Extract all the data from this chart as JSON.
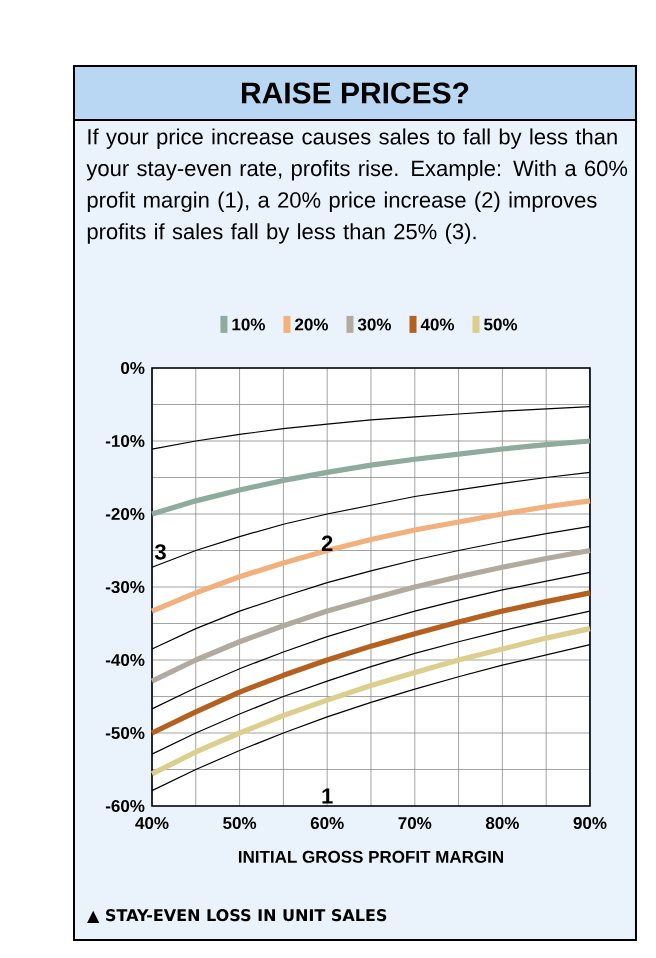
{
  "chart_data": {
    "type": "line",
    "title": "RAISE PRICES?",
    "subtitle": "If your price increase causes sales to fall by less than your stay-even rate, profits rise. Example: With a 60% profit margin (1), a 20% price increase (2) improves profits if sales fall by less than 25% (3).",
    "xlabel": "INITIAL GROSS PROFIT MARGIN",
    "annotations": [
      "1",
      "2",
      "3",
      "▲ STAY-EVEN LOSS IN UNIT SALES"
    ],
    "x": [
      40,
      45,
      50,
      55,
      60,
      65,
      70,
      75,
      80,
      85,
      90
    ],
    "series": [
      {
        "color": "#000000",
        "values": [
          -11.1,
          -10,
          -9.1,
          -8.3,
          -7.7,
          -7.1,
          -6.7,
          -6.3,
          -5.9,
          -5.6,
          -5.3
        ]
      },
      {
        "name": "10%",
        "color": "#8fab9b",
        "values": [
          -20,
          -18.2,
          -16.7,
          -15.4,
          -14.3,
          -13.3,
          -12.5,
          -11.8,
          -11.1,
          -10.5,
          -10
        ]
      },
      {
        "color": "#000000",
        "values": [
          -27.3,
          -25,
          -23.1,
          -21.4,
          -20,
          -18.8,
          -17.6,
          -16.7,
          -15.8,
          -15,
          -14.3
        ]
      },
      {
        "name": "20%",
        "color": "#f2b07c",
        "values": [
          -33.3,
          -30.8,
          -28.6,
          -26.7,
          -25,
          -23.5,
          -22.2,
          -21.1,
          -20,
          -19,
          -18.2
        ]
      },
      {
        "color": "#000000",
        "values": [
          -38.5,
          -35.7,
          -33.3,
          -31.3,
          -29.4,
          -27.8,
          -26.3,
          -25,
          -23.8,
          -22.7,
          -21.7
        ]
      },
      {
        "name": "30%",
        "color": "#b3aa9f",
        "values": [
          -42.9,
          -40,
          -37.5,
          -35.3,
          -33.3,
          -31.6,
          -30,
          -28.6,
          -27.3,
          -26.1,
          -25
        ]
      },
      {
        "color": "#000000",
        "values": [
          -46.7,
          -43.8,
          -41.2,
          -38.9,
          -36.8,
          -35,
          -33.3,
          -31.8,
          -30.4,
          -29.2,
          -28
        ]
      },
      {
        "name": "40%",
        "color": "#b5601e",
        "values": [
          -50,
          -47.1,
          -44.4,
          -42.1,
          -40,
          -38.1,
          -36.4,
          -34.8,
          -33.3,
          -32,
          -30.8
        ]
      },
      {
        "color": "#000000",
        "values": [
          -52.9,
          -50,
          -47.4,
          -45,
          -42.9,
          -40.9,
          -39.1,
          -37.5,
          -36,
          -34.6,
          -33.3
        ]
      },
      {
        "name": "50%",
        "color": "#dccf8e",
        "values": [
          -55.6,
          -52.6,
          -50,
          -47.6,
          -45.5,
          -43.5,
          -41.7,
          -40,
          -38.5,
          -37,
          -35.7
        ]
      },
      {
        "color": "#000000",
        "values": [
          -57.9,
          -55,
          -52.4,
          -50,
          -47.8,
          -45.8,
          -44,
          -42.3,
          -40.7,
          -39.3,
          -37.9
        ]
      }
    ],
    "xlim": [
      40,
      90
    ],
    "ylim": [
      -60,
      0
    ],
    "xticks": [
      {
        "value": 40,
        "label": "40%"
      },
      {
        "value": 45,
        "label": null
      },
      {
        "value": 50,
        "label": "50%"
      },
      {
        "value": 55,
        "label": null
      },
      {
        "value": 60,
        "label": "60%"
      },
      {
        "value": 65,
        "label": null
      },
      {
        "value": 70,
        "label": "70%"
      },
      {
        "value": 75,
        "label": null
      },
      {
        "value": 80,
        "label": "80%"
      },
      {
        "value": 85,
        "label": null
      },
      {
        "value": 90,
        "label": "90%"
      }
    ],
    "yticks": [
      {
        "value": -60,
        "label": "-60%"
      },
      {
        "value": -55,
        "label": null
      },
      {
        "value": -50,
        "label": "-50%"
      },
      {
        "value": -45,
        "label": null
      },
      {
        "value": -40,
        "label": "-40%"
      },
      {
        "value": -35,
        "label": null
      },
      {
        "value": -30,
        "label": "-30%"
      },
      {
        "value": -25,
        "label": null
      },
      {
        "value": -20,
        "label": "-20%"
      },
      {
        "value": -15,
        "label": null
      },
      {
        "value": -10,
        "label": "-10%"
      },
      {
        "value": -5,
        "label": null
      },
      {
        "value": 0,
        "label": "0%"
      }
    ],
    "grid": true,
    "legend": "top"
  }
}
